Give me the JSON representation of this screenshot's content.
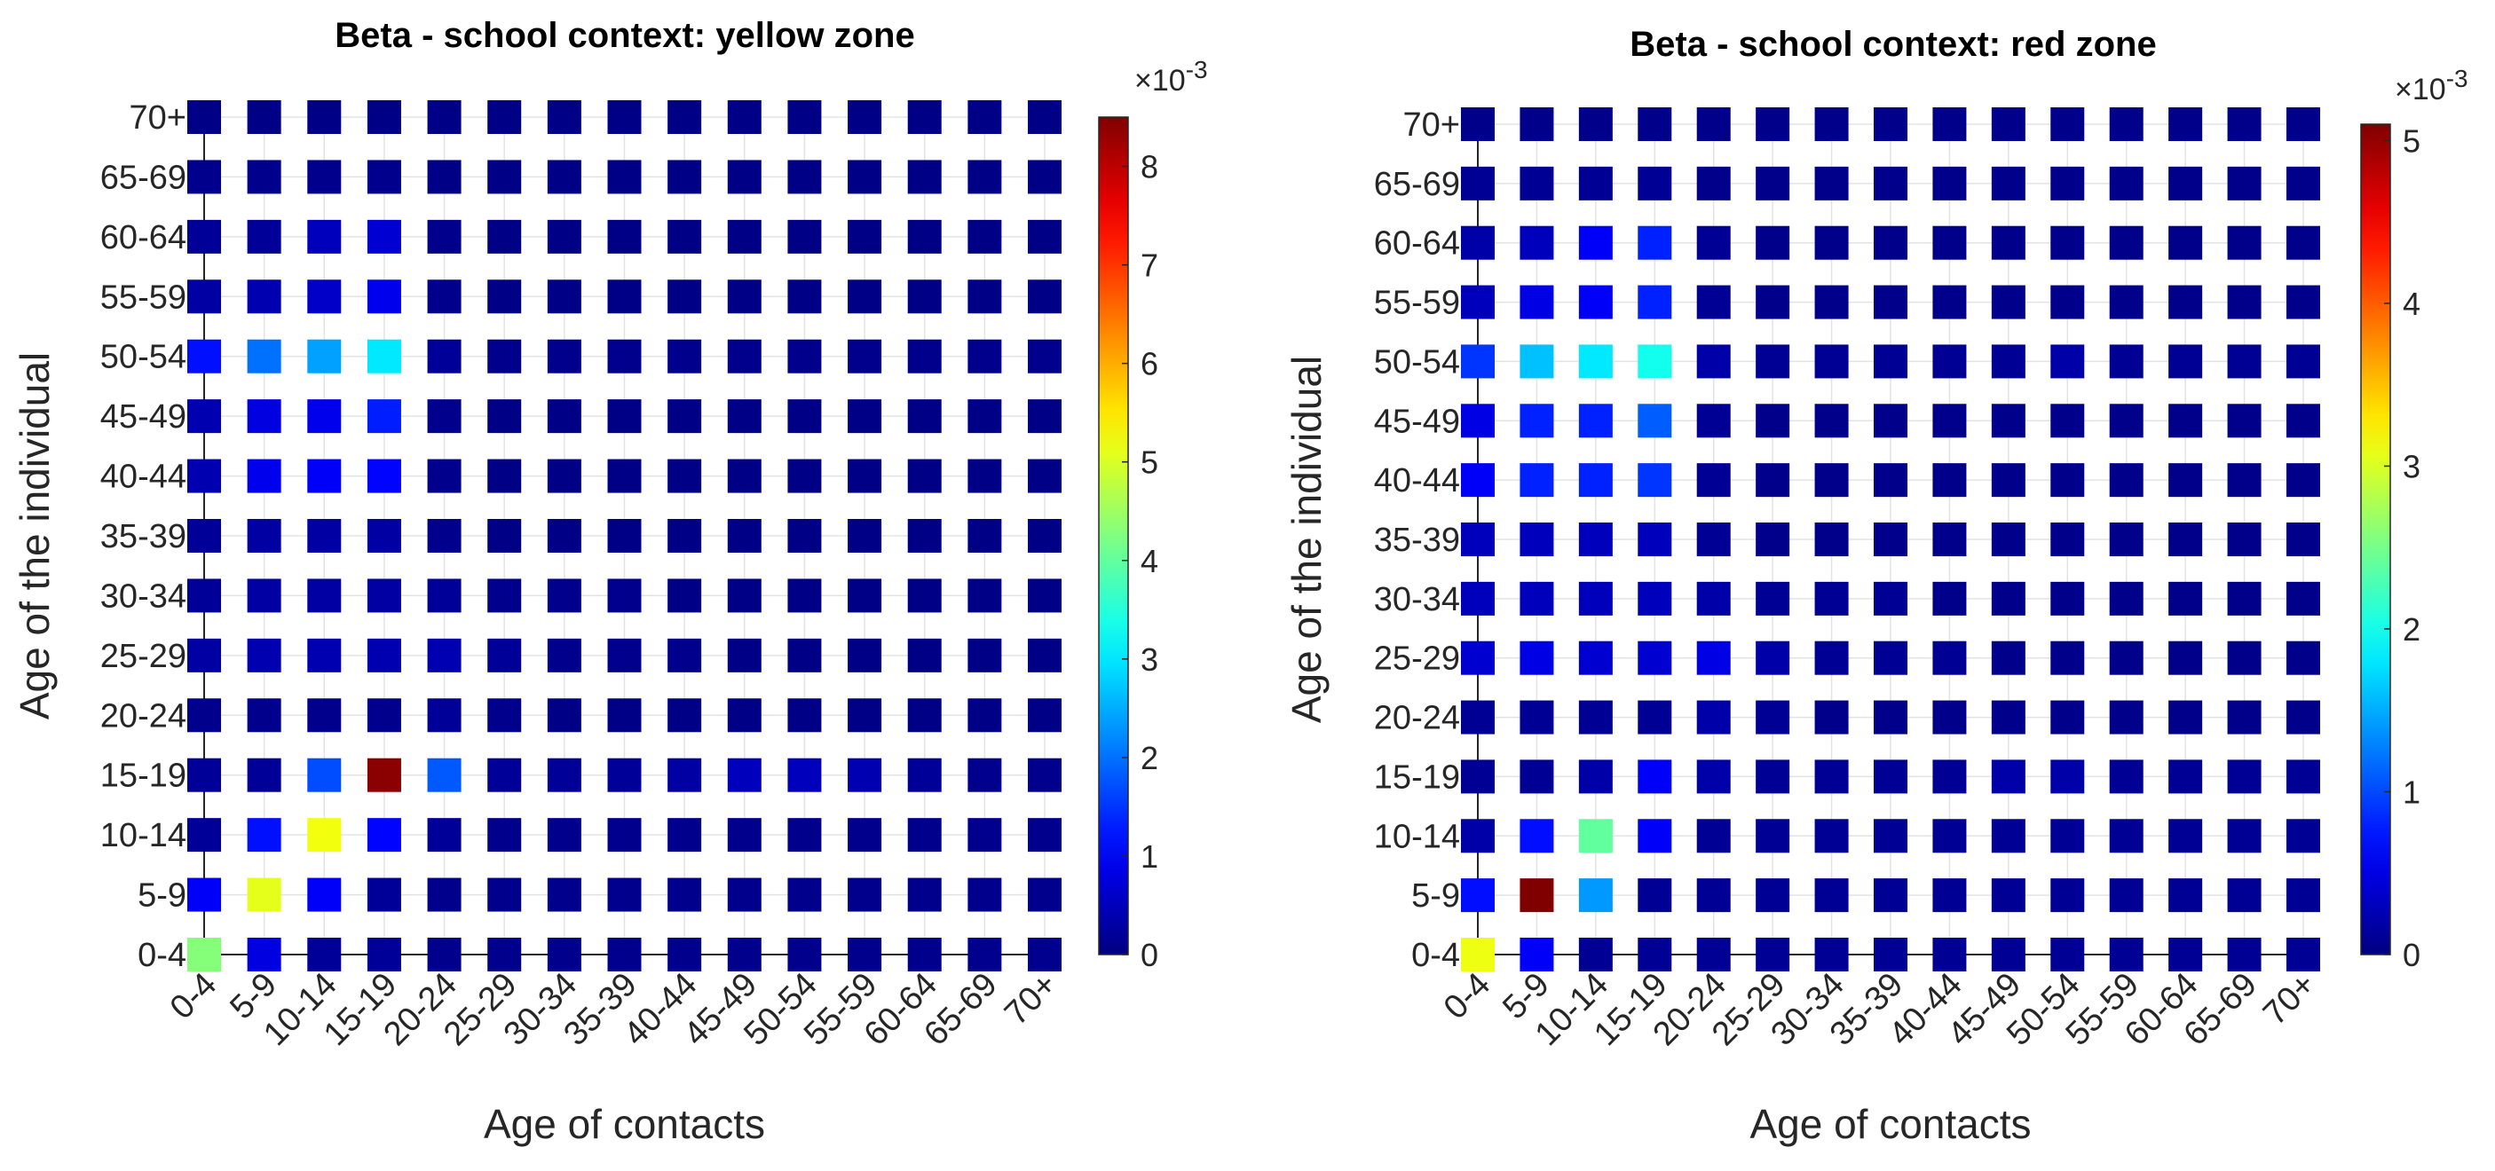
{
  "chart_data": [
    {
      "type": "heatmap",
      "title": "Beta - school context: yellow zone",
      "xlabel": "Age of contacts",
      "ylabel": "Age of the individual",
      "categories": [
        "0-4",
        "5-9",
        "10-14",
        "15-19",
        "20-24",
        "25-29",
        "30-34",
        "35-39",
        "40-44",
        "45-49",
        "50-54",
        "55-59",
        "60-64",
        "65-69",
        "70+"
      ],
      "colorbar": {
        "min": 0,
        "max": 8.5,
        "ticks": [
          "0",
          "1",
          "2",
          "3",
          "4",
          "5",
          "6",
          "7",
          "8"
        ],
        "exponent_prefix": "×10",
        "exponent": "-3"
      },
      "values_by_individual_age": {
        "70+": [
          0.05,
          0.05,
          0.05,
          0.05,
          0.05,
          0.05,
          0.05,
          0.05,
          0.05,
          0.05,
          0.05,
          0.05,
          0.05,
          0.05,
          0.05
        ],
        "65-69": [
          0.1,
          0.1,
          0.1,
          0.1,
          0.05,
          0.05,
          0.05,
          0.05,
          0.05,
          0.05,
          0.05,
          0.05,
          0.05,
          0.05,
          0.05
        ],
        "60-64": [
          0.2,
          0.2,
          0.5,
          0.7,
          0.1,
          0.05,
          0.05,
          0.05,
          0.05,
          0.05,
          0.05,
          0.05,
          0.05,
          0.05,
          0.05
        ],
        "55-59": [
          0.3,
          0.4,
          0.6,
          0.9,
          0.1,
          0.05,
          0.05,
          0.05,
          0.05,
          0.05,
          0.05,
          0.05,
          0.05,
          0.05,
          0.05
        ],
        "50-54": [
          1.2,
          2.0,
          2.4,
          3.0,
          0.2,
          0.1,
          0.1,
          0.1,
          0.1,
          0.1,
          0.1,
          0.1,
          0.1,
          0.1,
          0.1
        ],
        "45-49": [
          0.4,
          0.8,
          0.9,
          1.3,
          0.1,
          0.05,
          0.05,
          0.05,
          0.05,
          0.05,
          0.05,
          0.05,
          0.05,
          0.05,
          0.05
        ],
        "40-44": [
          0.4,
          0.9,
          1.0,
          1.1,
          0.1,
          0.05,
          0.05,
          0.05,
          0.05,
          0.05,
          0.05,
          0.05,
          0.05,
          0.05,
          0.05
        ],
        "35-39": [
          0.2,
          0.3,
          0.3,
          0.3,
          0.1,
          0.05,
          0.05,
          0.05,
          0.05,
          0.05,
          0.05,
          0.05,
          0.05,
          0.05,
          0.05
        ],
        "30-34": [
          0.2,
          0.3,
          0.3,
          0.3,
          0.2,
          0.1,
          0.1,
          0.1,
          0.05,
          0.05,
          0.05,
          0.05,
          0.05,
          0.05,
          0.05
        ],
        "25-29": [
          0.3,
          0.4,
          0.4,
          0.4,
          0.4,
          0.2,
          0.1,
          0.1,
          0.1,
          0.05,
          0.05,
          0.05,
          0.05,
          0.05,
          0.05
        ],
        "20-24": [
          0.1,
          0.1,
          0.1,
          0.1,
          0.2,
          0.1,
          0.05,
          0.05,
          0.05,
          0.05,
          0.05,
          0.05,
          0.05,
          0.05,
          0.05
        ],
        "15-19": [
          0.2,
          0.2,
          1.7,
          8.4,
          1.8,
          0.2,
          0.2,
          0.2,
          0.3,
          0.5,
          0.5,
          0.4,
          0.2,
          0.1,
          0.1
        ],
        "10-14": [
          0.2,
          1.2,
          5.2,
          1.1,
          0.2,
          0.1,
          0.1,
          0.1,
          0.1,
          0.1,
          0.1,
          0.1,
          0.1,
          0.1,
          0.1
        ],
        "5-9": [
          1.0,
          5.1,
          1.0,
          0.2,
          0.1,
          0.1,
          0.1,
          0.1,
          0.1,
          0.1,
          0.1,
          0.1,
          0.1,
          0.1,
          0.1
        ],
        "0-4": [
          4.3,
          0.8,
          0.2,
          0.2,
          0.1,
          0.1,
          0.1,
          0.1,
          0.1,
          0.1,
          0.1,
          0.1,
          0.1,
          0.1,
          0.1
        ]
      }
    },
    {
      "type": "heatmap",
      "title": "Beta - school context: red zone",
      "xlabel": "Age of contacts",
      "ylabel": "Age of the individual",
      "categories": [
        "0-4",
        "5-9",
        "10-14",
        "15-19",
        "20-24",
        "25-29",
        "30-34",
        "35-39",
        "40-44",
        "45-49",
        "50-54",
        "55-59",
        "60-64",
        "65-69",
        "70+"
      ],
      "colorbar": {
        "min": 0,
        "max": 5.1,
        "ticks": [
          "0",
          "1",
          "2",
          "3",
          "4",
          "5"
        ],
        "exponent_prefix": "×10",
        "exponent": "-3"
      },
      "values_by_individual_age": {
        "70+": [
          0.05,
          0.05,
          0.05,
          0.05,
          0.05,
          0.05,
          0.05,
          0.05,
          0.05,
          0.05,
          0.05,
          0.05,
          0.05,
          0.05,
          0.05
        ],
        "65-69": [
          0.1,
          0.1,
          0.1,
          0.1,
          0.05,
          0.05,
          0.05,
          0.05,
          0.05,
          0.05,
          0.05,
          0.05,
          0.05,
          0.05,
          0.05
        ],
        "60-64": [
          0.2,
          0.3,
          0.6,
          0.8,
          0.1,
          0.05,
          0.05,
          0.05,
          0.05,
          0.05,
          0.05,
          0.05,
          0.05,
          0.05,
          0.05
        ],
        "55-59": [
          0.3,
          0.5,
          0.6,
          0.8,
          0.1,
          0.05,
          0.05,
          0.05,
          0.05,
          0.05,
          0.05,
          0.05,
          0.05,
          0.05,
          0.05
        ],
        "50-54": [
          0.9,
          1.6,
          1.8,
          2.0,
          0.2,
          0.1,
          0.1,
          0.1,
          0.1,
          0.1,
          0.2,
          0.1,
          0.1,
          0.1,
          0.1
        ],
        "45-49": [
          0.5,
          0.8,
          0.8,
          1.1,
          0.1,
          0.05,
          0.05,
          0.05,
          0.05,
          0.05,
          0.05,
          0.05,
          0.05,
          0.05,
          0.05
        ],
        "40-44": [
          0.6,
          0.8,
          0.8,
          0.9,
          0.1,
          0.05,
          0.05,
          0.05,
          0.05,
          0.05,
          0.05,
          0.05,
          0.05,
          0.05,
          0.05
        ],
        "35-39": [
          0.3,
          0.3,
          0.3,
          0.3,
          0.1,
          0.05,
          0.05,
          0.05,
          0.05,
          0.05,
          0.05,
          0.05,
          0.05,
          0.05,
          0.05
        ],
        "30-34": [
          0.3,
          0.3,
          0.3,
          0.3,
          0.2,
          0.1,
          0.1,
          0.1,
          0.05,
          0.05,
          0.05,
          0.05,
          0.05,
          0.05,
          0.05
        ],
        "25-29": [
          0.4,
          0.5,
          0.4,
          0.4,
          0.5,
          0.2,
          0.1,
          0.1,
          0.1,
          0.05,
          0.05,
          0.05,
          0.05,
          0.05,
          0.05
        ],
        "20-24": [
          0.1,
          0.1,
          0.1,
          0.1,
          0.2,
          0.1,
          0.05,
          0.05,
          0.05,
          0.05,
          0.05,
          0.05,
          0.05,
          0.05,
          0.05
        ],
        "15-19": [
          0.1,
          0.1,
          0.2,
          0.6,
          0.2,
          0.1,
          0.1,
          0.1,
          0.1,
          0.2,
          0.2,
          0.1,
          0.1,
          0.1,
          0.1
        ],
        "10-14": [
          0.2,
          0.7,
          2.4,
          0.6,
          0.1,
          0.1,
          0.1,
          0.1,
          0.1,
          0.1,
          0.1,
          0.1,
          0.1,
          0.1,
          0.1
        ],
        "5-9": [
          0.7,
          5.1,
          1.4,
          0.1,
          0.1,
          0.1,
          0.1,
          0.1,
          0.1,
          0.1,
          0.1,
          0.1,
          0.1,
          0.1,
          0.1
        ],
        "0-4": [
          3.1,
          0.6,
          0.1,
          0.1,
          0.1,
          0.1,
          0.1,
          0.1,
          0.1,
          0.1,
          0.1,
          0.1,
          0.1,
          0.1,
          0.1
        ]
      }
    }
  ]
}
